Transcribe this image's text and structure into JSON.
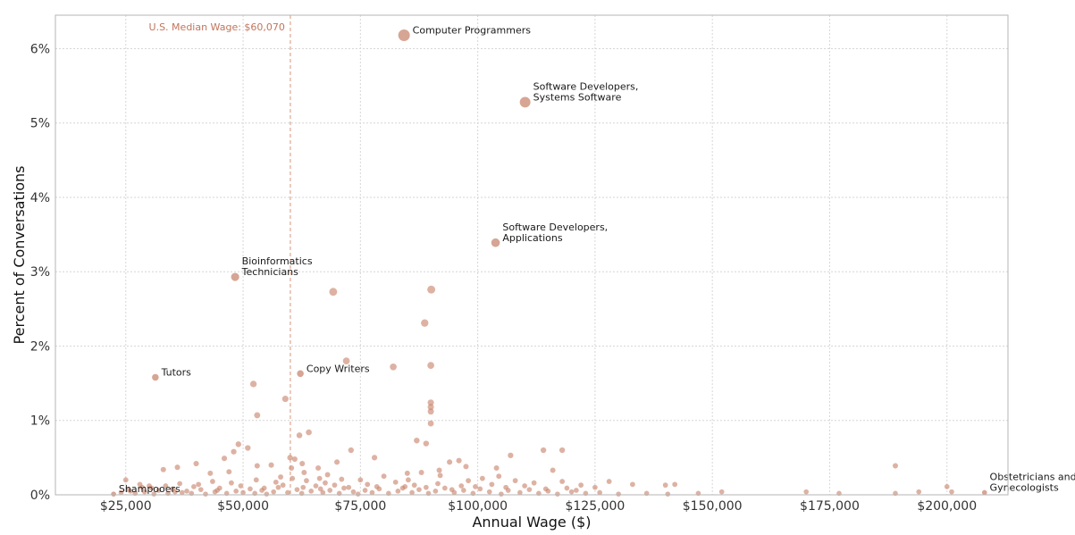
{
  "chart_data": {
    "type": "scatter",
    "title": "",
    "xlabel": "Annual Wage ($)",
    "ylabel": "Percent of Conversations",
    "xlim": [
      10000,
      213000
    ],
    "ylim": [
      0,
      6.45
    ],
    "x_ticks": [
      {
        "value": 25000,
        "label": "$25,000"
      },
      {
        "value": 50000,
        "label": "$50,000"
      },
      {
        "value": 75000,
        "label": "$75,000"
      },
      {
        "value": 100000,
        "label": "$100,000"
      },
      {
        "value": 125000,
        "label": "$125,000"
      },
      {
        "value": 150000,
        "label": "$150,000"
      },
      {
        "value": 175000,
        "label": "$175,000"
      },
      {
        "value": 200000,
        "label": "$200,000"
      }
    ],
    "y_ticks": [
      {
        "value": 0,
        "label": "0%"
      },
      {
        "value": 1,
        "label": "1%"
      },
      {
        "value": 2,
        "label": "2%"
      },
      {
        "value": 3,
        "label": "3%"
      },
      {
        "value": 4,
        "label": "4%"
      },
      {
        "value": 5,
        "label": "5%"
      },
      {
        "value": 6,
        "label": "6%"
      }
    ],
    "grid": true,
    "point_color": "#c8826b",
    "median_color": "#d9957c",
    "reference_line": {
      "x": 60070,
      "label": "U.S. Median Wage: $60,070"
    },
    "labeled_points": [
      {
        "x": 84300,
        "y": 6.18,
        "lines": [
          "Computer Programmers"
        ]
      },
      {
        "x": 110100,
        "y": 5.28,
        "lines": [
          "Software Developers,",
          "Systems Software"
        ]
      },
      {
        "x": 103800,
        "y": 3.39,
        "lines": [
          "Software Developers,",
          "Applications"
        ]
      },
      {
        "x": 48300,
        "y": 2.93,
        "lines": [
          "Bioinformatics",
          "Technicians"
        ]
      },
      {
        "x": 31300,
        "y": 1.58,
        "lines": [
          "Tutors"
        ]
      },
      {
        "x": 62200,
        "y": 1.63,
        "lines": [
          "Copy Writers"
        ]
      },
      {
        "x": 22400,
        "y": 0.01,
        "lines": [
          "Shampooers"
        ]
      },
      {
        "x": 208000,
        "y": 0.03,
        "lines": [
          "Obstetricians and",
          "Gynecologists"
        ]
      }
    ],
    "points": [
      [
        69200,
        2.73
      ],
      [
        90100,
        2.76
      ],
      [
        88700,
        2.31
      ],
      [
        72000,
        1.8
      ],
      [
        82000,
        1.72
      ],
      [
        90000,
        1.74
      ],
      [
        52200,
        1.49
      ],
      [
        59000,
        1.29
      ],
      [
        90000,
        1.24
      ],
      [
        90000,
        1.18
      ],
      [
        90000,
        1.12
      ],
      [
        53000,
        1.07
      ],
      [
        90000,
        0.96
      ],
      [
        64000,
        0.84
      ],
      [
        62000,
        0.8
      ],
      [
        87000,
        0.73
      ],
      [
        89000,
        0.69
      ],
      [
        49000,
        0.68
      ],
      [
        51000,
        0.63
      ],
      [
        48000,
        0.58
      ],
      [
        73000,
        0.6
      ],
      [
        114000,
        0.6
      ],
      [
        118000,
        0.6
      ],
      [
        60000,
        0.5
      ],
      [
        61000,
        0.48
      ],
      [
        46000,
        0.49
      ],
      [
        78000,
        0.5
      ],
      [
        96000,
        0.46
      ],
      [
        107000,
        0.53
      ],
      [
        189000,
        0.39
      ],
      [
        25000,
        0.2
      ],
      [
        28000,
        0.14
      ],
      [
        30000,
        0.12
      ],
      [
        33000,
        0.34
      ],
      [
        36000,
        0.37
      ],
      [
        40000,
        0.42
      ],
      [
        43000,
        0.29
      ],
      [
        47000,
        0.31
      ],
      [
        53000,
        0.39
      ],
      [
        56000,
        0.4
      ],
      [
        58000,
        0.24
      ],
      [
        63000,
        0.3
      ],
      [
        66000,
        0.36
      ],
      [
        68000,
        0.27
      ],
      [
        70000,
        0.44
      ],
      [
        75000,
        0.2
      ],
      [
        80000,
        0.25
      ],
      [
        85000,
        0.29
      ],
      [
        88000,
        0.3
      ],
      [
        92000,
        0.26
      ],
      [
        94000,
        0.44
      ],
      [
        98000,
        0.19
      ],
      [
        101000,
        0.22
      ],
      [
        104000,
        0.36
      ],
      [
        108000,
        0.19
      ],
      [
        112000,
        0.16
      ],
      [
        116000,
        0.33
      ],
      [
        118000,
        0.18
      ],
      [
        122000,
        0.13
      ],
      [
        125000,
        0.1
      ],
      [
        128000,
        0.18
      ],
      [
        133000,
        0.14
      ],
      [
        140000,
        0.13
      ],
      [
        142000,
        0.14
      ],
      [
        152000,
        0.04
      ],
      [
        170000,
        0.04
      ],
      [
        177000,
        0.02
      ],
      [
        189000,
        0.02
      ],
      [
        194000,
        0.04
      ],
      [
        200000,
        0.11
      ],
      [
        201000,
        0.04
      ],
      [
        24000,
        0.03
      ],
      [
        26000,
        0.05
      ],
      [
        27000,
        0.02
      ],
      [
        29000,
        0.04
      ],
      [
        31000,
        0.01
      ],
      [
        32000,
        0.06
      ],
      [
        34000,
        0.02
      ],
      [
        35000,
        0.08
      ],
      [
        37000,
        0.03
      ],
      [
        38000,
        0.05
      ],
      [
        39000,
        0.02
      ],
      [
        41000,
        0.07
      ],
      [
        42000,
        0.01
      ],
      [
        44000,
        0.04
      ],
      [
        45000,
        0.09
      ],
      [
        46500,
        0.02
      ],
      [
        48500,
        0.05
      ],
      [
        50000,
        0.03
      ],
      [
        51500,
        0.08
      ],
      [
        52500,
        0.02
      ],
      [
        54000,
        0.06
      ],
      [
        55000,
        0.01
      ],
      [
        56500,
        0.04
      ],
      [
        57500,
        0.1
      ],
      [
        59500,
        0.03
      ],
      [
        61500,
        0.07
      ],
      [
        62500,
        0.02
      ],
      [
        64500,
        0.05
      ],
      [
        65500,
        0.12
      ],
      [
        67000,
        0.03
      ],
      [
        68500,
        0.06
      ],
      [
        70500,
        0.02
      ],
      [
        71500,
        0.09
      ],
      [
        73500,
        0.04
      ],
      [
        74500,
        0.01
      ],
      [
        76000,
        0.06
      ],
      [
        77500,
        0.03
      ],
      [
        79000,
        0.08
      ],
      [
        81000,
        0.02
      ],
      [
        83000,
        0.05
      ],
      [
        84500,
        0.11
      ],
      [
        86000,
        0.03
      ],
      [
        87500,
        0.07
      ],
      [
        89500,
        0.02
      ],
      [
        91000,
        0.05
      ],
      [
        93000,
        0.09
      ],
      [
        95000,
        0.03
      ],
      [
        97000,
        0.06
      ],
      [
        99000,
        0.02
      ],
      [
        100500,
        0.08
      ],
      [
        102500,
        0.04
      ],
      [
        105000,
        0.01
      ],
      [
        106500,
        0.06
      ],
      [
        109000,
        0.03
      ],
      [
        111000,
        0.07
      ],
      [
        113000,
        0.02
      ],
      [
        115000,
        0.05
      ],
      [
        117000,
        0.01
      ],
      [
        120000,
        0.04
      ],
      [
        123000,
        0.02
      ],
      [
        126000,
        0.03
      ],
      [
        130000,
        0.01
      ],
      [
        136000,
        0.02
      ],
      [
        140500,
        0.01
      ],
      [
        147000,
        0.02
      ],
      [
        28500,
        0.1
      ],
      [
        33500,
        0.12
      ],
      [
        36500,
        0.15
      ],
      [
        40500,
        0.14
      ],
      [
        43500,
        0.18
      ],
      [
        47500,
        0.16
      ],
      [
        52800,
        0.2
      ],
      [
        57000,
        0.17
      ],
      [
        60500,
        0.22
      ],
      [
        63500,
        0.19
      ],
      [
        67500,
        0.16
      ],
      [
        71000,
        0.21
      ],
      [
        76500,
        0.14
      ],
      [
        82500,
        0.17
      ],
      [
        86500,
        0.13
      ],
      [
        91500,
        0.15
      ],
      [
        96500,
        0.12
      ],
      [
        103000,
        0.14
      ],
      [
        110000,
        0.12
      ],
      [
        119000,
        0.09
      ],
      [
        25500,
        0.07
      ],
      [
        30500,
        0.09
      ],
      [
        35500,
        0.04
      ],
      [
        39500,
        0.11
      ],
      [
        44500,
        0.06
      ],
      [
        49500,
        0.12
      ],
      [
        54500,
        0.09
      ],
      [
        58500,
        0.13
      ],
      [
        62800,
        0.1
      ],
      [
        66500,
        0.08
      ],
      [
        69500,
        0.13
      ],
      [
        72500,
        0.1
      ],
      [
        78500,
        0.11
      ],
      [
        84000,
        0.09
      ],
      [
        89000,
        0.1
      ],
      [
        94500,
        0.07
      ],
      [
        99500,
        0.11
      ],
      [
        106000,
        0.1
      ],
      [
        114500,
        0.08
      ],
      [
        121000,
        0.06
      ],
      [
        60300,
        0.36
      ],
      [
        62600,
        0.42
      ],
      [
        66300,
        0.22
      ],
      [
        85200,
        0.2
      ],
      [
        91800,
        0.33
      ],
      [
        97500,
        0.38
      ],
      [
        104500,
        0.25
      ]
    ]
  }
}
